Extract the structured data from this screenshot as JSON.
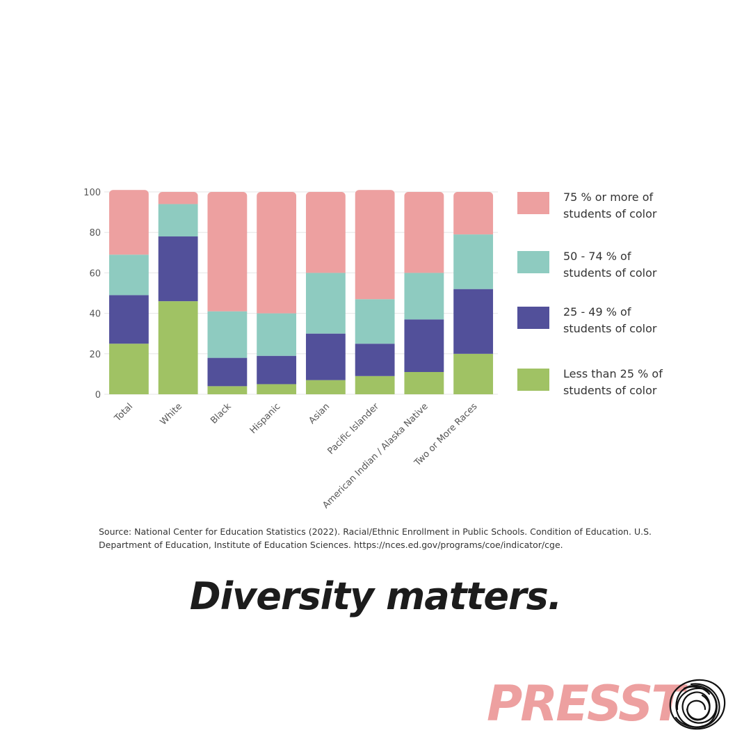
{
  "chart_data": {
    "type": "bar",
    "stacked": true,
    "categories": [
      "Total",
      "White",
      "Black",
      "Hispanic",
      "Asian",
      "Pacific Islander",
      "American Indian / Alaska Native",
      "Two or More Races"
    ],
    "series": [
      {
        "name": "Less than 25 % of students of color",
        "color": "#a0c264",
        "values": [
          25,
          46,
          4,
          5,
          7,
          9,
          11,
          20
        ]
      },
      {
        "name": "25 - 49 % of students of color",
        "color": "#52509a",
        "values": [
          24,
          32,
          14,
          14,
          23,
          16,
          26,
          32
        ]
      },
      {
        "name": "50 - 74 % of students of color",
        "color": "#8ecbc0",
        "values": [
          20,
          16,
          23,
          21,
          30,
          22,
          23,
          27
        ]
      },
      {
        "name": "75 % or more of students of color",
        "color": "#eda0a0",
        "values": [
          32,
          6,
          59,
          60,
          40,
          54,
          40,
          21
        ]
      }
    ],
    "yticks": [
      0,
      20,
      40,
      60,
      80,
      100
    ],
    "ylim": [
      0,
      100
    ],
    "legend_position": "right",
    "grid": true
  },
  "legend": [
    {
      "line1": "75 % or more of",
      "line2": "students of color",
      "color": "#eda0a0"
    },
    {
      "line1": "50 - 74 % of",
      "line2": "students of color",
      "color": "#8ecbc0"
    },
    {
      "line1": "25 - 49 % of",
      "line2": "students of color",
      "color": "#52509a"
    },
    {
      "line1": "Less than 25 % of",
      "line2": "students of color",
      "color": "#a0c264"
    }
  ],
  "source": {
    "line1": "Source: National Center for Education Statistics (2022). Racial/Ethnic Enrollment in Public Schools. Condition of Education. U.S.",
    "line2": "Department of Education, Institute of Education Sciences. https://nces.ed.gov/programs/coe/indicator/cge."
  },
  "headline": "Diversity matters.",
  "logo": {
    "text": "PRESST",
    "color": "#eda0a0"
  }
}
